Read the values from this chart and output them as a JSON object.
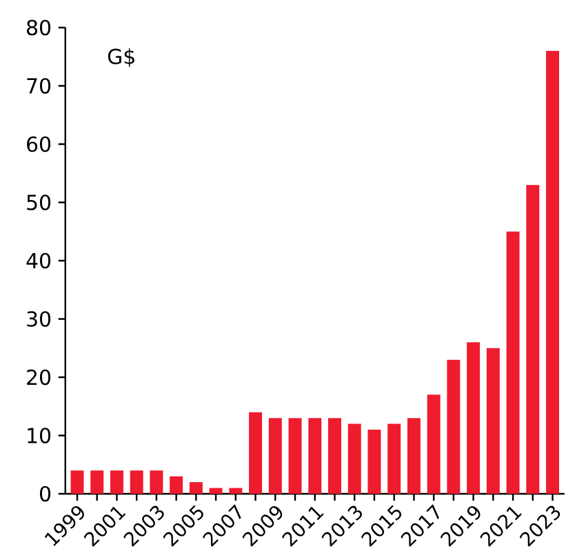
{
  "chart_data": {
    "type": "bar",
    "ylabel": "G$",
    "categories": [
      "1999",
      null,
      "2001",
      null,
      "2003",
      null,
      "2005",
      null,
      "2007",
      null,
      "2009",
      null,
      "2011",
      null,
      "2013",
      null,
      "2015",
      null,
      "2017",
      null,
      "2019",
      null,
      "2021",
      null,
      "2023"
    ],
    "values": [
      4,
      4,
      4,
      4,
      4,
      3,
      2,
      1,
      1,
      14,
      13,
      13,
      13,
      13,
      12,
      11,
      12,
      13,
      17,
      23,
      26,
      25,
      45,
      53,
      76
    ],
    "color": "#ed1c2e",
    "ylim": [
      0,
      80
    ],
    "yticks": [
      0,
      10,
      20,
      30,
      40,
      50,
      60,
      70,
      80
    ],
    "grid": false
  }
}
